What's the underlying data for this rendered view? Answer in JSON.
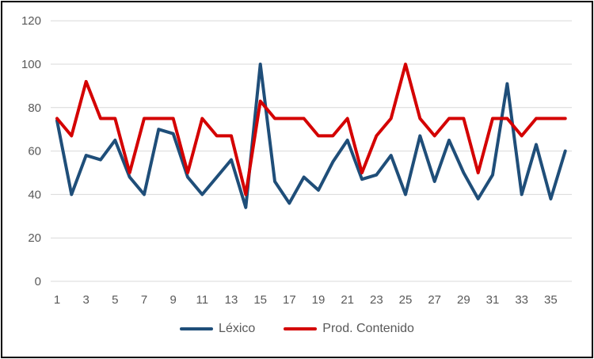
{
  "chart_data": {
    "type": "line",
    "x": [
      1,
      2,
      3,
      4,
      5,
      6,
      7,
      8,
      9,
      10,
      11,
      12,
      13,
      14,
      15,
      16,
      17,
      18,
      19,
      20,
      21,
      22,
      23,
      24,
      25,
      26,
      27,
      28,
      29,
      30,
      31,
      32,
      33,
      34,
      35,
      36
    ],
    "x_tick_labels": [
      "1",
      "3",
      "5",
      "7",
      "9",
      "11",
      "13",
      "15",
      "17",
      "19",
      "21",
      "23",
      "25",
      "27",
      "29",
      "31",
      "33",
      "35"
    ],
    "y_ticks": [
      0,
      20,
      40,
      60,
      80,
      100,
      120
    ],
    "ylim": [
      0,
      120
    ],
    "grid": "horizontal",
    "legend_position": "bottom-center",
    "title": "",
    "xlabel": "",
    "ylabel": "",
    "series": [
      {
        "name": "Léxico",
        "color": "#1F4E79",
        "values": [
          74,
          40,
          58,
          56,
          65,
          48,
          40,
          70,
          68,
          48,
          40,
          48,
          56,
          34,
          100,
          46,
          36,
          48,
          42,
          55,
          65,
          47,
          49,
          58,
          40,
          67,
          46,
          65,
          50,
          38,
          49,
          91,
          40,
          63,
          38,
          60
        ]
      },
      {
        "name": "Prod. Contenido",
        "color": "#D40000",
        "values": [
          75,
          67,
          92,
          75,
          75,
          50,
          75,
          75,
          75,
          50,
          75,
          67,
          67,
          40,
          83,
          75,
          75,
          75,
          67,
          67,
          75,
          50,
          67,
          75,
          100,
          75,
          67,
          75,
          75,
          50,
          75,
          75,
          67,
          75,
          75,
          75
        ]
      }
    ]
  },
  "style": {
    "gridline_color": "#D9D9D9",
    "axis_text_color": "#595959",
    "frame_border_color": "#000000",
    "background_color": "#FFFFFF"
  }
}
